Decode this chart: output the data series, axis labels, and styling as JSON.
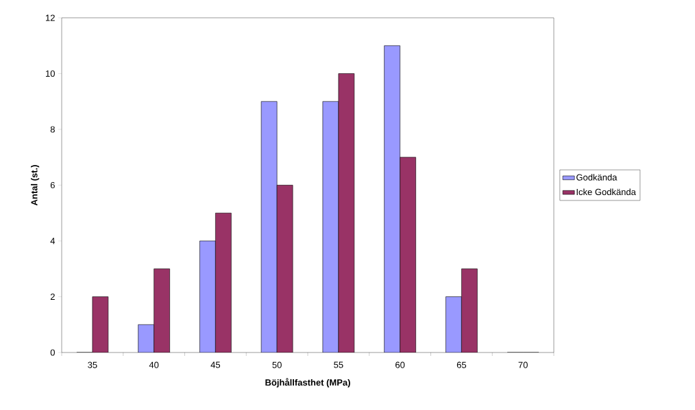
{
  "chart_data": {
    "type": "bar",
    "xlabel": "Böjhållfasthet (MPa)",
    "ylabel": "Antal (st.)",
    "categories": [
      "35",
      "40",
      "45",
      "50",
      "55",
      "60",
      "65",
      "70"
    ],
    "series": [
      {
        "name": "Godkända",
        "color": "#9999ff",
        "values": [
          0,
          1,
          4,
          9,
          9,
          11,
          2,
          0
        ]
      },
      {
        "name": "Icke Godkända",
        "color": "#993366",
        "values": [
          2,
          3,
          5,
          6,
          10,
          7,
          3,
          0
        ]
      }
    ],
    "ylim": [
      0,
      12
    ],
    "yticks": [
      0,
      2,
      4,
      6,
      8,
      10,
      12
    ],
    "grid": false,
    "legend": "right"
  }
}
